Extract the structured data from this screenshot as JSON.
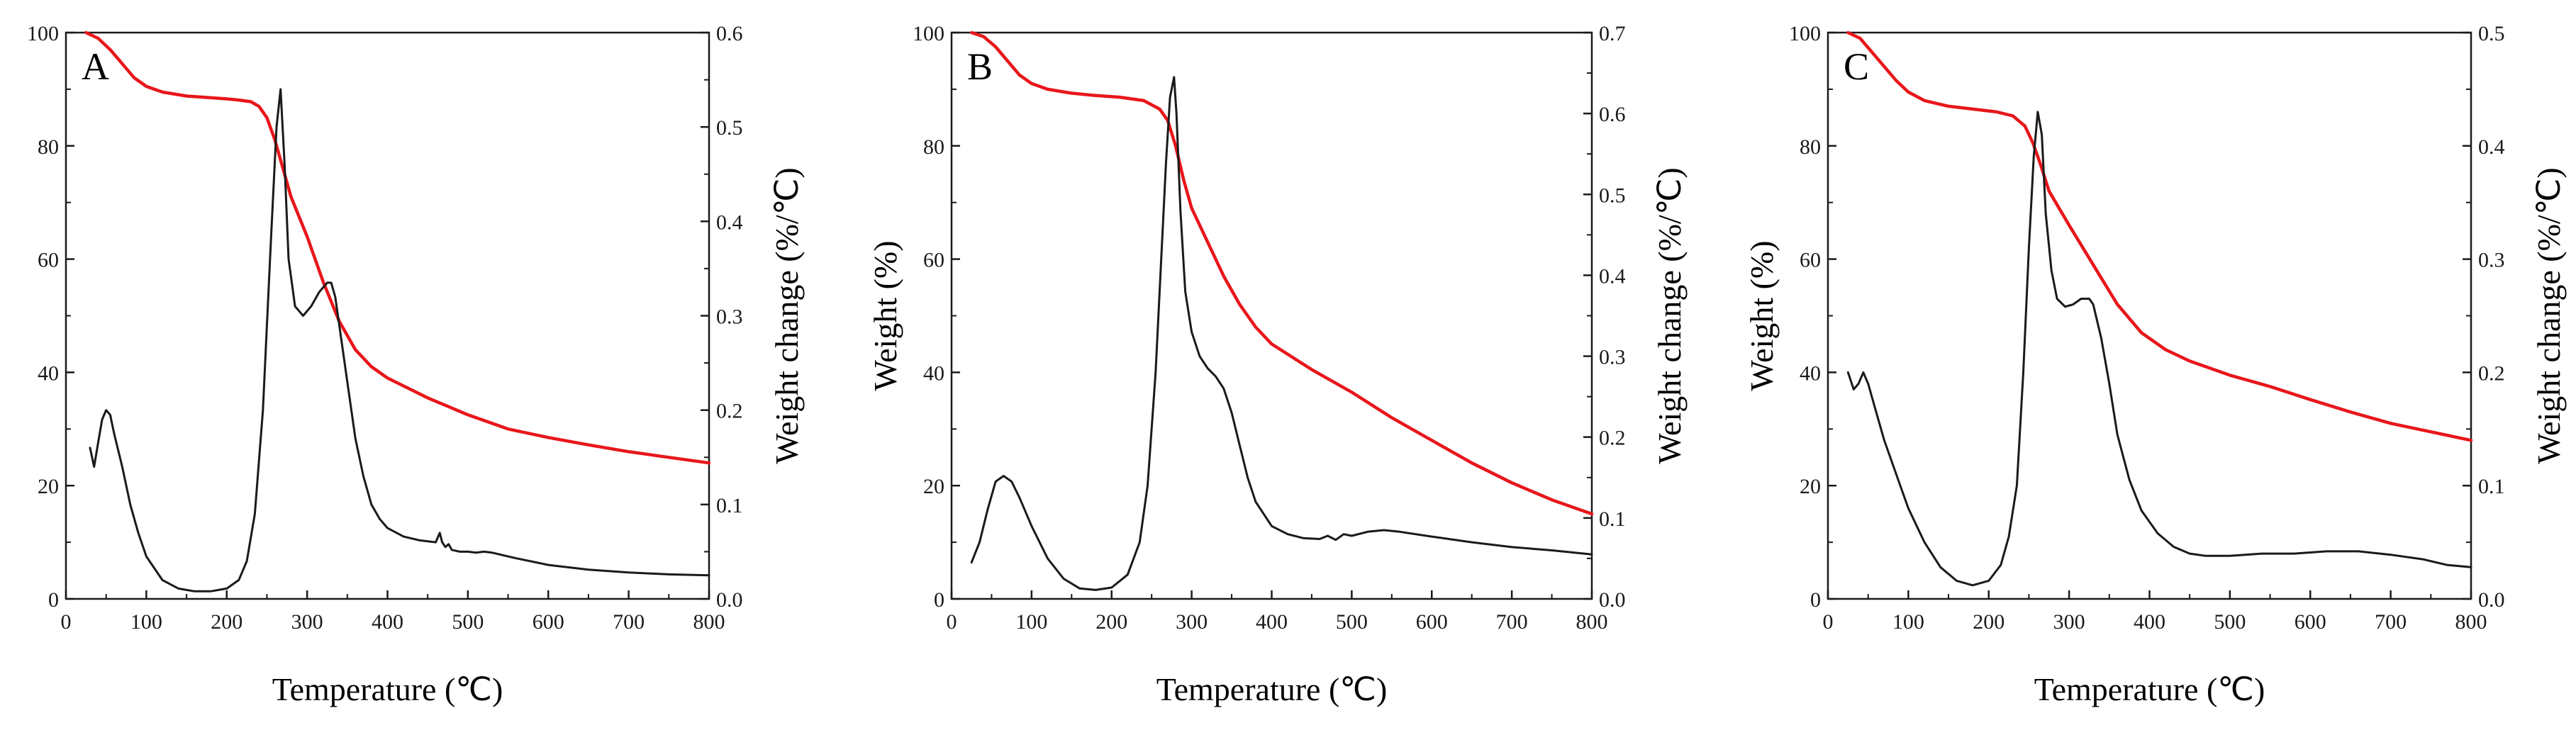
{
  "chart_data": [
    {
      "type": "line",
      "panel_label": "A",
      "xlabel": "Temperature (℃)",
      "ylabel_left": "",
      "ylabel_right": "Weight change (%/℃)",
      "xlim": [
        0,
        800
      ],
      "xticks": [
        "0",
        "100",
        "200",
        "300",
        "400",
        "500",
        "600",
        "700",
        "800"
      ],
      "ylim_left": [
        0,
        100
      ],
      "yticks_left": [
        "0",
        "20",
        "40",
        "60",
        "80",
        "100"
      ],
      "ylim_right": [
        0,
        0.6
      ],
      "yticks_right": [
        "0.0",
        "0.1",
        "0.2",
        "0.3",
        "0.4",
        "0.5",
        "0.6"
      ],
      "grid": false,
      "series": [
        {
          "name": "Weight",
          "axis": "left",
          "color": "#e8161b",
          "x": [
            25,
            40,
            55,
            70,
            85,
            100,
            120,
            150,
            180,
            200,
            215,
            230,
            240,
            250,
            260,
            270,
            280,
            300,
            320,
            340,
            360,
            380,
            400,
            450,
            500,
            550,
            600,
            650,
            700,
            750,
            800
          ],
          "y": [
            100,
            99,
            97,
            94.5,
            92,
            90.5,
            89.5,
            88.8,
            88.5,
            88.3,
            88.1,
            87.8,
            87,
            85,
            81,
            76,
            71,
            64,
            56,
            49,
            44,
            41,
            39,
            35.5,
            32.5,
            30,
            28.5,
            27.2,
            26,
            25,
            24
          ]
        },
        {
          "name": "Weight change",
          "axis": "right",
          "color": "#1a1a1a",
          "x": [
            30,
            35,
            40,
            45,
            50,
            55,
            60,
            70,
            80,
            90,
            100,
            120,
            140,
            160,
            180,
            200,
            215,
            225,
            235,
            245,
            255,
            262,
            267,
            272,
            277,
            285,
            295,
            305,
            315,
            325,
            330,
            335,
            340,
            350,
            360,
            370,
            380,
            390,
            400,
            420,
            440,
            460,
            465,
            468,
            472,
            476,
            480,
            490,
            500,
            510,
            520,
            530,
            540,
            560,
            600,
            650,
            700,
            750,
            800
          ],
          "y": [
            0.16,
            0.14,
            0.165,
            0.19,
            0.2,
            0.195,
            0.175,
            0.14,
            0.1,
            0.07,
            0.045,
            0.02,
            0.011,
            0.008,
            0.008,
            0.011,
            0.02,
            0.04,
            0.09,
            0.2,
            0.38,
            0.5,
            0.54,
            0.46,
            0.36,
            0.31,
            0.3,
            0.31,
            0.325,
            0.335,
            0.335,
            0.32,
            0.29,
            0.23,
            0.17,
            0.13,
            0.1,
            0.085,
            0.075,
            0.066,
            0.062,
            0.06,
            0.07,
            0.06,
            0.055,
            0.058,
            0.052,
            0.05,
            0.05,
            0.049,
            0.05,
            0.049,
            0.047,
            0.043,
            0.036,
            0.031,
            0.028,
            0.026,
            0.025
          ]
        }
      ]
    },
    {
      "type": "line",
      "panel_label": "B",
      "xlabel": "Temperature (℃)",
      "ylabel_left": "Weight (%)",
      "ylabel_right": "Weight change (%/℃)",
      "xlim": [
        0,
        800
      ],
      "xticks": [
        "0",
        "100",
        "200",
        "300",
        "400",
        "500",
        "600",
        "700",
        "800"
      ],
      "ylim_left": [
        0,
        100
      ],
      "yticks_left": [
        "0",
        "20",
        "40",
        "60",
        "80",
        "100"
      ],
      "ylim_right": [
        0,
        0.7
      ],
      "yticks_right": [
        "0.0",
        "0.1",
        "0.2",
        "0.3",
        "0.4",
        "0.5",
        "0.6",
        "0.7"
      ],
      "grid": false,
      "series": [
        {
          "name": "Weight",
          "axis": "left",
          "color": "#e8161b",
          "x": [
            25,
            40,
            55,
            70,
            85,
            100,
            120,
            150,
            180,
            210,
            240,
            260,
            270,
            280,
            290,
            300,
            320,
            340,
            360,
            380,
            400,
            450,
            500,
            550,
            600,
            650,
            700,
            750,
            800
          ],
          "y": [
            100,
            99.3,
            97.5,
            95,
            92.5,
            91,
            90,
            89.3,
            88.9,
            88.6,
            88,
            86.5,
            84.5,
            80,
            74,
            69,
            63,
            57,
            52,
            48,
            45,
            40.5,
            36.5,
            32,
            28,
            24,
            20.5,
            17.5,
            15
          ]
        },
        {
          "name": "Weight change",
          "axis": "right",
          "color": "#1a1a1a",
          "x": [
            25,
            35,
            45,
            55,
            65,
            75,
            85,
            100,
            120,
            140,
            160,
            180,
            200,
            220,
            235,
            245,
            255,
            262,
            268,
            273,
            278,
            281,
            286,
            292,
            300,
            310,
            320,
            330,
            340,
            350,
            360,
            370,
            380,
            400,
            420,
            440,
            460,
            470,
            480,
            490,
            500,
            520,
            540,
            560,
            600,
            650,
            700,
            750,
            800
          ],
          "y": [
            0.045,
            0.07,
            0.11,
            0.145,
            0.152,
            0.145,
            0.125,
            0.09,
            0.05,
            0.025,
            0.013,
            0.011,
            0.014,
            0.03,
            0.07,
            0.14,
            0.28,
            0.42,
            0.54,
            0.62,
            0.645,
            0.6,
            0.48,
            0.38,
            0.33,
            0.3,
            0.285,
            0.275,
            0.26,
            0.23,
            0.19,
            0.15,
            0.12,
            0.09,
            0.08,
            0.075,
            0.074,
            0.078,
            0.073,
            0.08,
            0.078,
            0.083,
            0.085,
            0.083,
            0.077,
            0.07,
            0.064,
            0.06,
            0.055
          ]
        }
      ]
    },
    {
      "type": "line",
      "panel_label": "C",
      "xlabel": "Temperature (℃)",
      "ylabel_left": "Weight (%)",
      "ylabel_right": "Weight change (%/℃)",
      "xlim": [
        0,
        800
      ],
      "xticks": [
        "0",
        "100",
        "200",
        "300",
        "400",
        "500",
        "600",
        "700",
        "800"
      ],
      "ylim_left": [
        0,
        100
      ],
      "yticks_left": [
        "0",
        "20",
        "40",
        "60",
        "80",
        "100"
      ],
      "ylim_right": [
        0,
        0.5
      ],
      "yticks_right": [
        "0.0",
        "0.1",
        "0.2",
        "0.3",
        "0.4",
        "0.5"
      ],
      "grid": false,
      "series": [
        {
          "name": "Weight",
          "axis": "left",
          "color": "#e8161b",
          "x": [
            25,
            40,
            55,
            70,
            85,
            100,
            120,
            150,
            180,
            210,
            230,
            245,
            255,
            265,
            275,
            300,
            330,
            360,
            390,
            420,
            450,
            500,
            550,
            600,
            650,
            700,
            750,
            800
          ],
          "y": [
            100,
            99,
            96.5,
            94,
            91.5,
            89.5,
            88,
            87,
            86.5,
            86,
            85.3,
            83.5,
            80.5,
            76.5,
            72,
            66,
            59,
            52,
            47,
            44,
            42,
            39.5,
            37.5,
            35.2,
            33,
            31,
            29.5,
            28
          ]
        },
        {
          "name": "Weight change",
          "axis": "right",
          "color": "#1a1a1a",
          "x": [
            25,
            32,
            38,
            44,
            50,
            60,
            70,
            80,
            90,
            100,
            120,
            140,
            160,
            180,
            200,
            215,
            225,
            235,
            243,
            250,
            256,
            261,
            266,
            271,
            278,
            285,
            295,
            305,
            315,
            325,
            330,
            340,
            350,
            360,
            375,
            390,
            410,
            430,
            450,
            470,
            500,
            540,
            580,
            620,
            660,
            700,
            740,
            770,
            800
          ],
          "y": [
            0.2,
            0.185,
            0.19,
            0.2,
            0.19,
            0.165,
            0.14,
            0.12,
            0.1,
            0.08,
            0.05,
            0.028,
            0.016,
            0.012,
            0.016,
            0.03,
            0.055,
            0.1,
            0.2,
            0.31,
            0.39,
            0.43,
            0.41,
            0.34,
            0.29,
            0.265,
            0.258,
            0.26,
            0.265,
            0.265,
            0.26,
            0.23,
            0.19,
            0.145,
            0.105,
            0.078,
            0.058,
            0.046,
            0.04,
            0.038,
            0.038,
            0.04,
            0.04,
            0.042,
            0.042,
            0.039,
            0.035,
            0.03,
            0.028
          ]
        }
      ]
    }
  ]
}
